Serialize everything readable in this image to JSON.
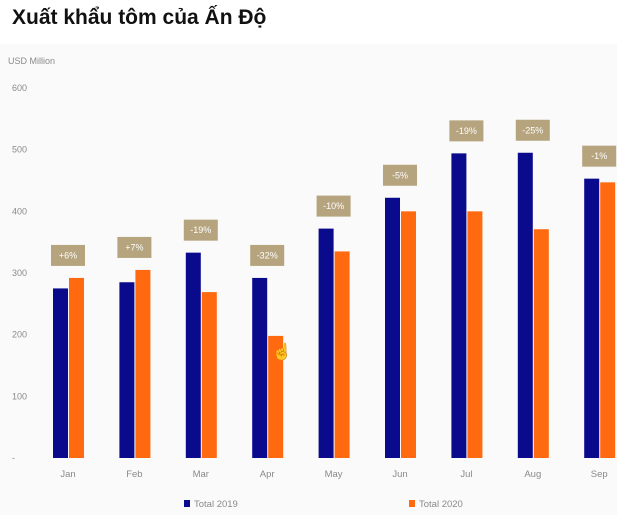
{
  "page": {
    "title": "Xuất khẩu tôm của Ấn Độ"
  },
  "colors": {
    "series_2019": "#0a0a8c",
    "series_2020": "#ff6a10",
    "badge": "#b5a47e",
    "axis_text": "#8a8a8a",
    "background": "#fafafa"
  },
  "cursor_icon": "hand-pointer-icon",
  "chart_data": {
    "type": "bar",
    "unit_label": "USD Million",
    "ylim": [
      0,
      600
    ],
    "yticks": [
      0,
      100,
      200,
      300,
      400,
      500,
      600
    ],
    "ytick_labels": [
      "-",
      "100",
      "200",
      "300",
      "400",
      "500",
      "600"
    ],
    "categories": [
      "Jan",
      "Feb",
      "Mar",
      "Apr",
      "May",
      "Jun",
      "Jul",
      "Aug",
      "Sep"
    ],
    "series": [
      {
        "name": "Total 2019",
        "values": [
          275,
          285,
          333,
          292,
          372,
          422,
          494,
          495,
          453
        ]
      },
      {
        "name": "Total 2020",
        "values": [
          292,
          305,
          269,
          198,
          335,
          400,
          400,
          371,
          447
        ]
      }
    ],
    "change_labels": [
      "+6%",
      "+7%",
      "-19%",
      "-32%",
      "-10%",
      "-5%",
      "-19%",
      "-25%",
      "-1%"
    ],
    "legend_position": "bottom",
    "grid": false
  }
}
